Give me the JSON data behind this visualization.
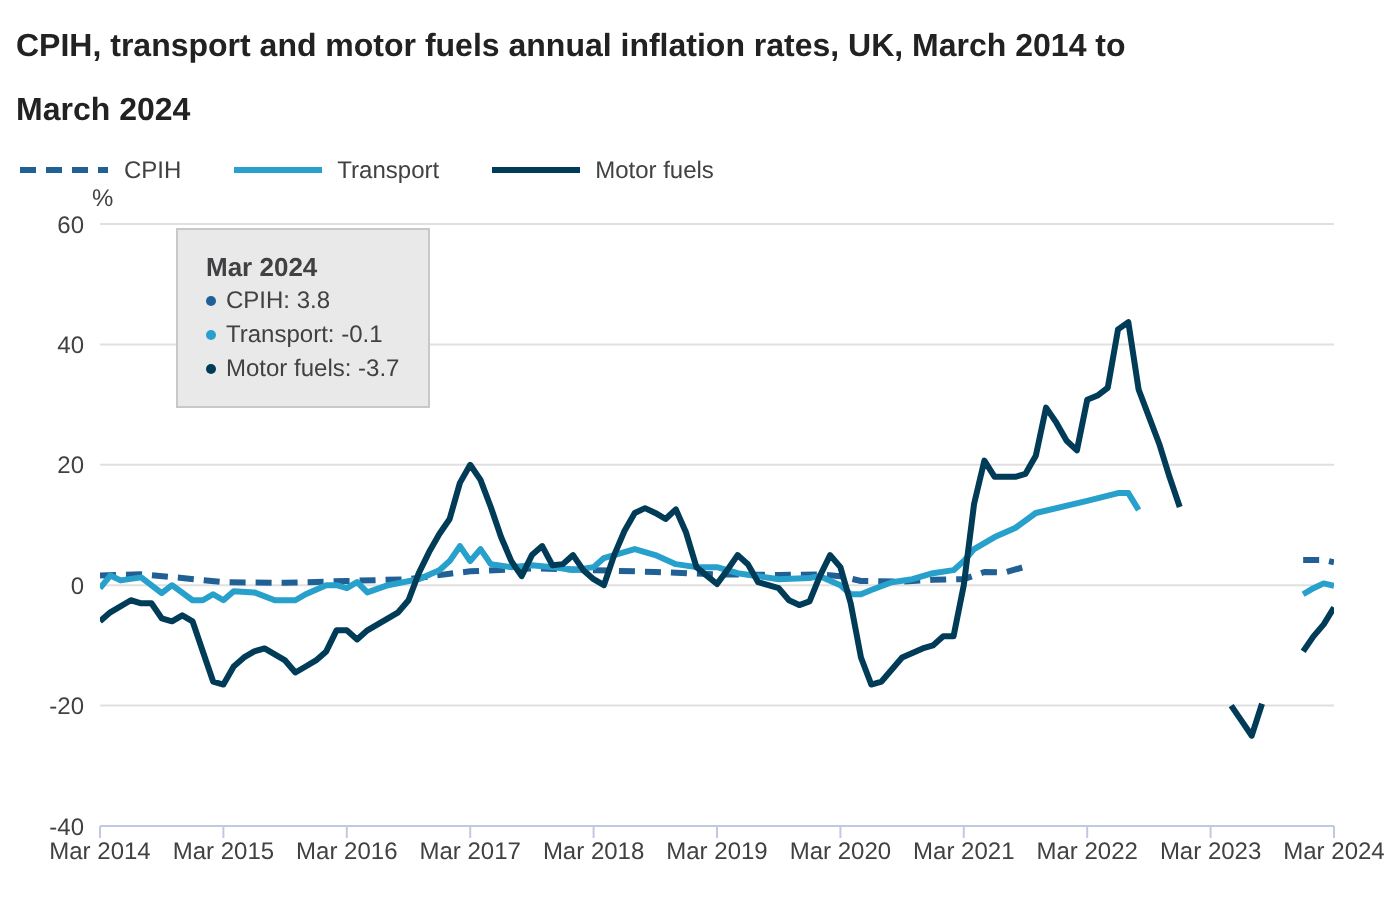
{
  "chart_data": {
    "type": "line",
    "title": "CPIH, transport and motor fuels annual inflation rates, UK, March 2014 to March 2024",
    "ylabel": "%",
    "annotations": [
      "Mar 2024",
      "CPIH: 3.8",
      "Transport: -0.1",
      "Motor fuels: -3.7"
    ],
    "xlim": [
      "2014-03",
      "2024-03"
    ],
    "xticks": [
      {
        "value": "2014-03",
        "label": "Mar 2014"
      },
      {
        "value": "2015-03",
        "label": "Mar 2015"
      },
      {
        "value": "2016-03",
        "label": "Mar 2016"
      },
      {
        "value": "2017-03",
        "label": "Mar 2017"
      },
      {
        "value": "2018-03",
        "label": "Mar 2018"
      },
      {
        "value": "2019-03",
        "label": "Mar 2019"
      },
      {
        "value": "2020-03",
        "label": "Mar 2020"
      },
      {
        "value": "2021-03",
        "label": "Mar 2021"
      },
      {
        "value": "2022-03",
        "label": "Mar 2022"
      },
      {
        "value": "2023-03",
        "label": "Mar 2023"
      },
      {
        "value": "2024-03",
        "label": "Mar 2024"
      }
    ],
    "ylim": [
      -40,
      60
    ],
    "yticks": [
      -40,
      -20,
      0,
      20,
      40,
      60
    ],
    "grid": "y",
    "legend": "top left",
    "marker": "none",
    "series": [
      {
        "name": "CPIH",
        "color": "#206095",
        "line_style": "dashed",
        "x": [
          "2014-03",
          "2014-07",
          "2014-11",
          "2015-03",
          "2015-09",
          "2016-03",
          "2016-09",
          "2017-01",
          "2017-03",
          "2017-09",
          "2018-03",
          "2018-09",
          "2019-03",
          "2019-09",
          "2020-01",
          "2020-03",
          "2020-05",
          "2020-09",
          "2020-12",
          "2021-03",
          "2021-05",
          "2021-07",
          "2021-09",
          "2021-10",
          "2023-12",
          "2024-01",
          "2024-02",
          "2024-03"
        ],
        "values": [
          1.6,
          1.8,
          1.2,
          0.5,
          0.4,
          0.7,
          1.0,
          1.9,
          2.3,
          2.8,
          2.5,
          2.2,
          1.8,
          1.7,
          1.8,
          1.5,
          0.7,
          0.6,
          0.9,
          1.0,
          2.2,
          2.1,
          3.1,
          null,
          4.2,
          4.2,
          4.2,
          3.8
        ]
      },
      {
        "name": "Transport",
        "color": "#27a0cc",
        "line_style": "solid",
        "x": [
          "2014-03",
          "2014-04",
          "2014-05",
          "2014-07",
          "2014-09",
          "2014-10",
          "2014-12",
          "2015-01",
          "2015-02",
          "2015-03",
          "2015-04",
          "2015-06",
          "2015-08",
          "2015-10",
          "2015-11",
          "2016-01",
          "2016-02",
          "2016-03",
          "2016-04",
          "2016-05",
          "2016-07",
          "2016-10",
          "2016-12",
          "2017-01",
          "2017-02",
          "2017-03",
          "2017-04",
          "2017-05",
          "2017-07",
          "2017-09",
          "2017-11",
          "2018-01",
          "2018-03",
          "2018-04",
          "2018-06",
          "2018-07",
          "2018-09",
          "2018-11",
          "2019-01",
          "2019-03",
          "2019-05",
          "2019-07",
          "2019-09",
          "2019-12",
          "2020-01",
          "2020-03",
          "2020-04",
          "2020-05",
          "2020-06",
          "2020-08",
          "2020-10",
          "2020-12",
          "2021-02",
          "2021-03",
          "2021-04",
          "2021-06",
          "2021-08",
          "2021-10",
          "2022-03",
          "2022-06",
          "2022-07",
          "2022-08",
          "2022-09",
          "2023-12",
          "2024-01",
          "2024-02",
          "2024-03"
        ],
        "values": [
          -0.5,
          1.6,
          0.8,
          1.3,
          -1.3,
          0,
          -2.5,
          -2.5,
          -1.5,
          -2.5,
          -1,
          -1.2,
          -2.5,
          -2.5,
          -1.5,
          0,
          0,
          -0.5,
          0.5,
          -1.2,
          0,
          1,
          2.5,
          4,
          6.5,
          4,
          6,
          3.5,
          3,
          3.3,
          3,
          2.5,
          3,
          4.5,
          5.5,
          6,
          5,
          3.5,
          3,
          3,
          2,
          1.5,
          1,
          1.2,
          1.5,
          0,
          -1.5,
          -1.5,
          -0.8,
          0.5,
          1,
          2,
          2.5,
          4,
          6,
          8,
          9.5,
          12,
          14,
          15.3,
          15.3,
          12.5,
          null,
          -1.5,
          -0.5,
          0.3,
          -0.1
        ]
      },
      {
        "name": "Motor fuels",
        "color": "#003c57",
        "line_style": "solid",
        "x": [
          "2014-03",
          "2014-04",
          "2014-06",
          "2014-07",
          "2014-08",
          "2014-09",
          "2014-10",
          "2014-11",
          "2014-12",
          "2015-01",
          "2015-02",
          "2015-03",
          "2015-04",
          "2015-05",
          "2015-06",
          "2015-07",
          "2015-08",
          "2015-09",
          "2015-10",
          "2015-11",
          "2015-12",
          "2016-01",
          "2016-02",
          "2016-03",
          "2016-04",
          "2016-05",
          "2016-06",
          "2016-08",
          "2016-09",
          "2016-10",
          "2016-11",
          "2016-12",
          "2017-01",
          "2017-02",
          "2017-03",
          "2017-04",
          "2017-05",
          "2017-06",
          "2017-07",
          "2017-08",
          "2017-09",
          "2017-10",
          "2017-11",
          "2017-12",
          "2018-01",
          "2018-02",
          "2018-03",
          "2018-04",
          "2018-05",
          "2018-06",
          "2018-07",
          "2018-08",
          "2018-09",
          "2018-10",
          "2018-11",
          "2018-12",
          "2019-01",
          "2019-02",
          "2019-03",
          "2019-04",
          "2019-05",
          "2019-06",
          "2019-07",
          "2019-08",
          "2019-09",
          "2019-10",
          "2019-11",
          "2019-12",
          "2020-01",
          "2020-02",
          "2020-03",
          "2020-04",
          "2020-05",
          "2020-06",
          "2020-07",
          "2020-09",
          "2020-11",
          "2020-12",
          "2021-01",
          "2021-02",
          "2021-03",
          "2021-04",
          "2021-05",
          "2021-06",
          "2021-07",
          "2021-08",
          "2021-09",
          "2021-10",
          "2021-11",
          "2021-12",
          "2022-01",
          "2022-02",
          "2022-03",
          "2022-04",
          "2022-05",
          "2022-06",
          "2022-07",
          "2022-08",
          "2022-09",
          "2022-10",
          "2022-11",
          "2022-12",
          "2023-01",
          "2023-05",
          "2023-06",
          "2023-07",
          "2023-08",
          "2023-09",
          "2023-12",
          "2024-01",
          "2024-02",
          "2024-03"
        ],
        "values": [
          -6,
          -4.5,
          -2.5,
          -3,
          -3,
          -5.5,
          -6,
          -5,
          -6,
          -11,
          -16,
          -16.5,
          -13.5,
          -12,
          -11,
          -10.5,
          -11.5,
          -12.5,
          -14.5,
          -13.5,
          -12.5,
          -11,
          -7.5,
          -7.5,
          -9,
          -7.5,
          -6.5,
          -4.5,
          -2.5,
          2,
          5.5,
          8.5,
          11,
          17,
          20,
          17.5,
          13,
          8,
          4,
          1.5,
          5,
          6.5,
          3.3,
          3.5,
          5,
          2.5,
          1,
          0,
          5,
          9,
          12,
          12.8,
          12,
          11,
          12.6,
          8.7,
          3,
          1.6,
          0.2,
          2.5,
          5,
          3.5,
          0.5,
          0,
          -0.5,
          -2.5,
          -3.3,
          -2.7,
          1.5,
          5,
          3,
          -3,
          -12,
          -16.5,
          -16,
          -12,
          -10.5,
          -10,
          -8.5,
          -8.5,
          0,
          13.5,
          20.7,
          18,
          18,
          18,
          18.5,
          21.5,
          29.5,
          27,
          24,
          22.4,
          30.8,
          31.5,
          32.8,
          42.5,
          43.7,
          32.5,
          28,
          23.5,
          18,
          13,
          null,
          -20,
          -22.5,
          -25,
          -19.7,
          null,
          -11,
          -8.5,
          -6.5,
          -3.7
        ]
      }
    ]
  }
}
